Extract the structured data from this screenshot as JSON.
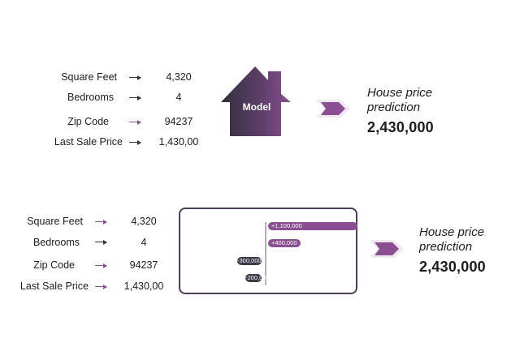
{
  "features": [
    {
      "label": "Square Feet",
      "value": "4,320"
    },
    {
      "label": "Bedrooms",
      "value": "4"
    },
    {
      "label": "Zip Code",
      "value": "94237"
    },
    {
      "label": "Last Sale Price",
      "value": "1,430,00"
    }
  ],
  "model": {
    "label": "Model"
  },
  "prediction": {
    "label_line1": "House price",
    "label_line2": "prediction",
    "value": "2,430,000"
  },
  "contributions": [
    {
      "label": "+1,100,000",
      "value": 1100000
    },
    {
      "label": "+400,000",
      "value": 400000
    },
    {
      "label": "-300,000",
      "value": -300000
    },
    {
      "label": "-200,000",
      "value": -200000
    }
  ],
  "colors": {
    "accent": "#8a4f91",
    "dark": "#3c3a48",
    "panel_border": "#4c3d5a"
  }
}
